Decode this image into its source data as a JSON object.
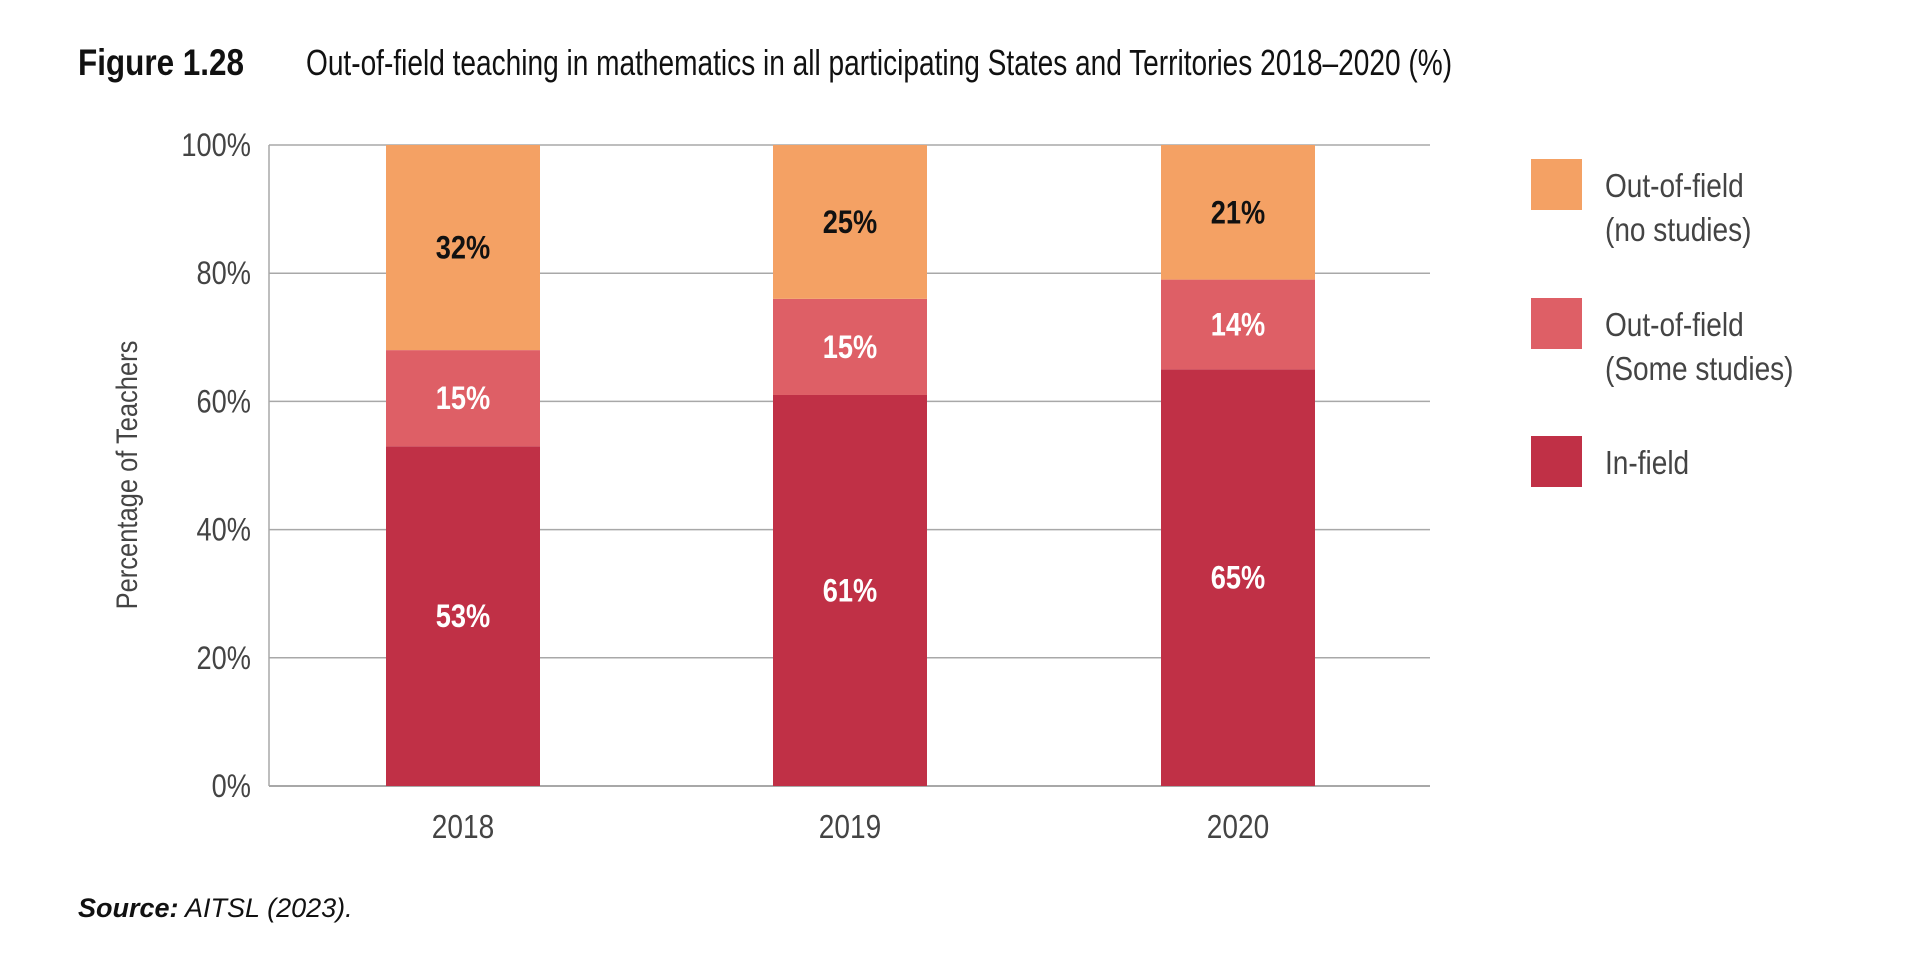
{
  "figure_label": "Figure 1.28",
  "source_label": "Source:",
  "source_text": "AITSL (2023).",
  "chart_data": {
    "type": "bar",
    "stacked": true,
    "title": "Out-of-field teaching in mathematics in all participating States and Territories 2018–2020 (%)",
    "xlabel": "",
    "ylabel": "Percentage of Teachers",
    "ylim": [
      0,
      100
    ],
    "yticks": [
      "0%",
      "20%",
      "40%",
      "60%",
      "80%",
      "100%"
    ],
    "ytick_values": [
      0,
      20,
      40,
      60,
      80,
      100
    ],
    "grid": true,
    "legend_position": "right",
    "categories": [
      "2018",
      "2019",
      "2020"
    ],
    "series": [
      {
        "name": "In-field",
        "values": [
          53,
          61,
          65
        ],
        "labels": [
          "53%",
          "61%",
          "65%"
        ],
        "color": "#c03046",
        "label_color": "#ffffff"
      },
      {
        "name": "Out-of-field (Some studies)",
        "legend_lines": [
          "Out-of-field",
          "(Some studies)"
        ],
        "values": [
          15,
          15,
          14
        ],
        "labels": [
          "15%",
          "15%",
          "14%"
        ],
        "color": "#de5f66",
        "label_color": "#ffffff"
      },
      {
        "name": "Out-of-field (no studies)",
        "legend_lines": [
          "Out-of-field",
          "(no studies)"
        ],
        "values": [
          32,
          25,
          21
        ],
        "labels": [
          "32%",
          "25%",
          "21%"
        ],
        "color": "#f4a164",
        "label_color": "#111111"
      }
    ]
  }
}
